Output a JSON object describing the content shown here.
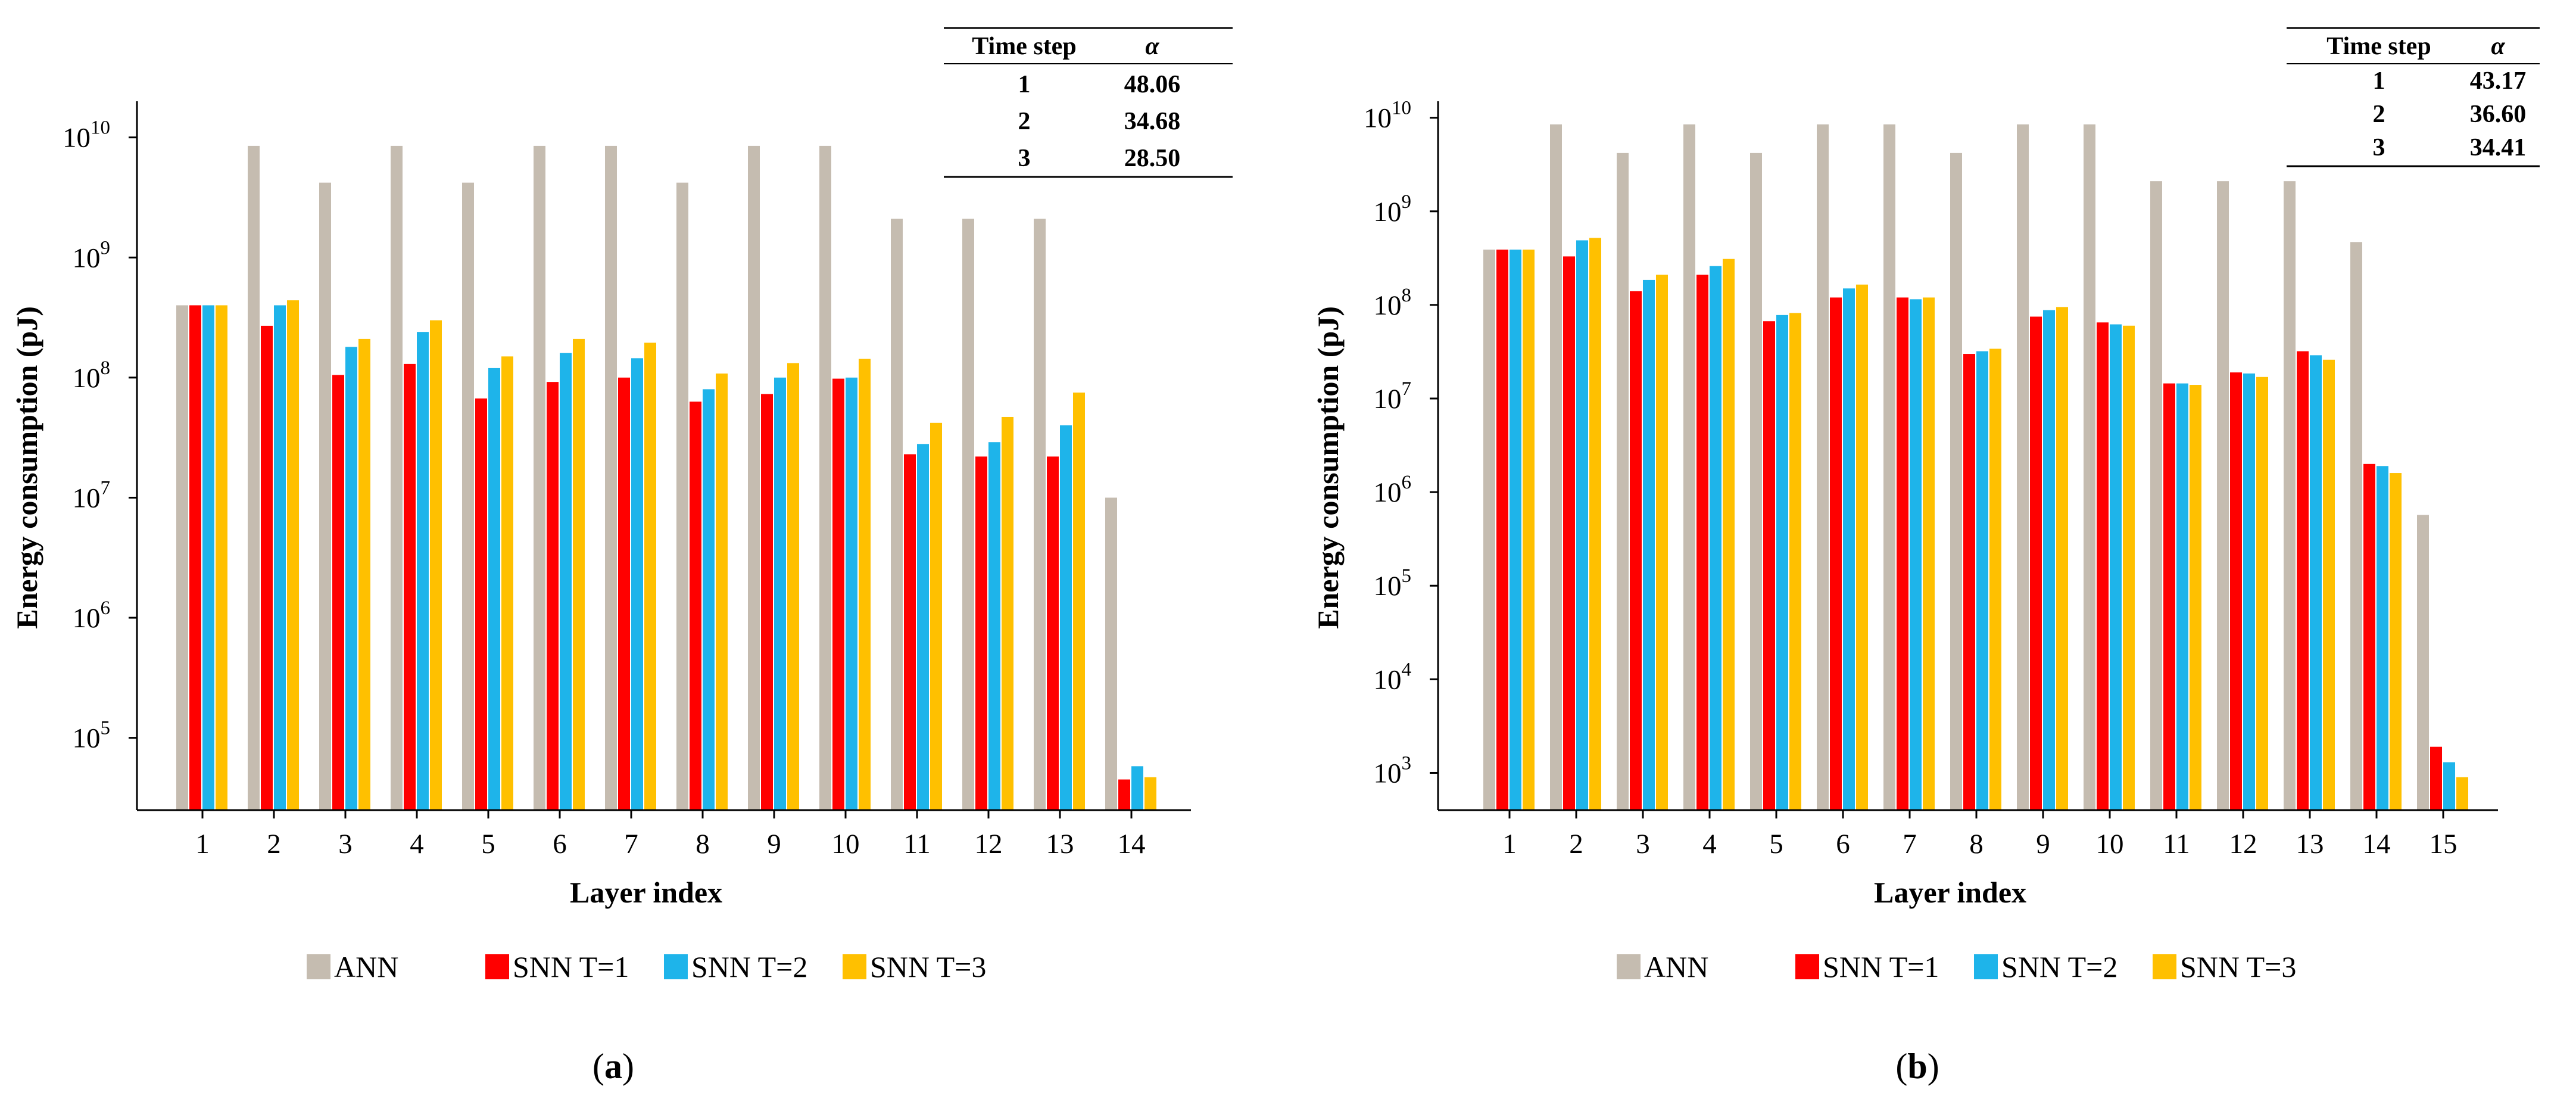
{
  "chart_data": [
    {
      "type": "bar",
      "caption": "a",
      "xlabel": "Layer index",
      "ylabel": "Energy consumption (pJ)",
      "yscale": "log",
      "ylim": [
        25000,
        20000000000
      ],
      "yticks": [
        5,
        6,
        7,
        8,
        9,
        10
      ],
      "categories": [
        "1",
        "2",
        "3",
        "4",
        "5",
        "6",
        "7",
        "8",
        "9",
        "10",
        "11",
        "12",
        "13",
        "14"
      ],
      "series": [
        {
          "name": "ANN",
          "color": "#c5bcb0",
          "values": [
            400000000,
            8500000000,
            4200000000,
            8500000000,
            4200000000,
            8500000000,
            8500000000,
            4200000000,
            8500000000,
            8500000000,
            2100000000,
            2100000000,
            2100000000,
            10000000
          ]
        },
        {
          "name": "SNN T=1",
          "color": "#ff0000",
          "values": [
            400000000,
            270000000,
            105000000,
            130000000,
            67000000,
            92000000,
            100000000,
            63000000,
            73000000,
            98000000,
            23000000,
            22000000,
            22000000,
            45000
          ]
        },
        {
          "name": "SNN T=2",
          "color": "#1eb4ea",
          "values": [
            400000000,
            400000000,
            180000000,
            240000000,
            120000000,
            160000000,
            145000000,
            80000000,
            100000000,
            100000000,
            28000000,
            29000000,
            40000000,
            58000
          ]
        },
        {
          "name": "SNN T=3",
          "color": "#ffc000",
          "values": [
            400000000,
            440000000,
            210000000,
            300000000,
            150000000,
            210000000,
            195000000,
            108000000,
            132000000,
            143000000,
            42000000,
            47000000,
            75000000,
            47000
          ]
        }
      ],
      "table": {
        "headers": [
          "Time step",
          "α"
        ],
        "rows": [
          [
            "1",
            "48.06"
          ],
          [
            "2",
            "34.68"
          ],
          [
            "3",
            "28.50"
          ]
        ]
      },
      "legend": [
        "ANN",
        "SNN T=1",
        "SNN T=2",
        "SNN T=3"
      ],
      "legend_position": "bottom"
    },
    {
      "type": "bar",
      "caption": "b",
      "xlabel": "Layer index",
      "ylabel": "Energy consumption (pJ)",
      "yscale": "log",
      "ylim": [
        400,
        15000000000
      ],
      "yticks": [
        3,
        4,
        5,
        6,
        7,
        8,
        9,
        10
      ],
      "categories": [
        "1",
        "2",
        "3",
        "4",
        "5",
        "6",
        "7",
        "8",
        "9",
        "10",
        "11",
        "12",
        "13",
        "14",
        "15"
      ],
      "series": [
        {
          "name": "ANN",
          "color": "#c5bcb0",
          "values": [
            390000000,
            8500000000,
            4200000000,
            8500000000,
            4200000000,
            8500000000,
            8500000000,
            4200000000,
            8500000000,
            8500000000,
            2100000000,
            2100000000,
            2100000000,
            470000000,
            570000
          ]
        },
        {
          "name": "SNN T=1",
          "color": "#ff0000",
          "values": [
            390000000,
            330000000,
            140000000,
            210000000,
            67000000,
            120000000,
            120000000,
            30000000,
            75000000,
            65000000,
            14500000,
            19000000,
            32000000,
            2000000,
            1900
          ]
        },
        {
          "name": "SNN T=2",
          "color": "#1eb4ea",
          "values": [
            390000000,
            490000000,
            185000000,
            260000000,
            78000000,
            150000000,
            115000000,
            32000000,
            88000000,
            62000000,
            14500000,
            18500000,
            29000000,
            1900000,
            1300
          ]
        },
        {
          "name": "SNN T=3",
          "color": "#ffc000",
          "values": [
            390000000,
            520000000,
            210000000,
            310000000,
            82000000,
            165000000,
            120000000,
            34000000,
            95000000,
            60000000,
            14000000,
            17000000,
            26000000,
            1600000,
            900
          ]
        }
      ],
      "table": {
        "headers": [
          "Time step",
          "α"
        ],
        "rows": [
          [
            "1",
            "43.17"
          ],
          [
            "2",
            "36.60"
          ],
          [
            "3",
            "34.41"
          ]
        ]
      },
      "legend": [
        "ANN",
        "SNN T=1",
        "SNN T=2",
        "SNN T=3"
      ],
      "legend_position": "bottom"
    }
  ]
}
